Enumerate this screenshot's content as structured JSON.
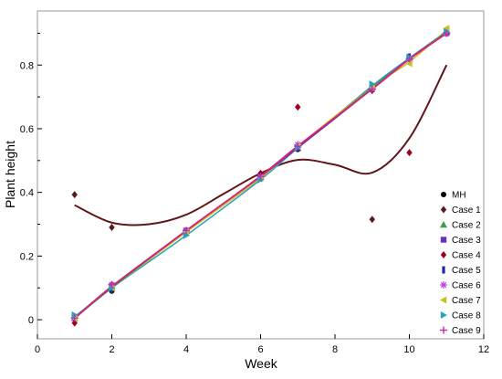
{
  "chart_data": {
    "type": "scatter",
    "xlabel": "Week",
    "ylabel": "Plant height",
    "xlim": [
      0,
      12
    ],
    "ylim": [
      -0.06,
      0.97
    ],
    "x_ticks": [
      "0",
      "2",
      "4",
      "6",
      "8",
      "10",
      "12"
    ],
    "x_tick_values": [
      0,
      2,
      4,
      6,
      8,
      10,
      12
    ],
    "y_ticks": [
      "0",
      "0.2",
      "0.4",
      "0.6",
      "0.8"
    ],
    "y_tick_values": [
      0,
      0.2,
      0.4,
      0.6,
      0.8
    ],
    "grid": false,
    "legend_position": "right",
    "x": [
      1,
      2,
      4,
      6,
      7,
      9,
      10,
      11
    ],
    "series": [
      {
        "name": "MH",
        "marker": "circle",
        "color": "#000000",
        "values": [
          0.005,
          0.09,
          0.28,
          0.45,
          0.535,
          0.73,
          0.82,
          0.9
        ]
      },
      {
        "name": "Case 1",
        "marker": "diamond",
        "color": "#5a1a1a",
        "values": [
          0.393,
          0.29,
          0.28,
          0.455,
          0.545,
          0.315,
          0.82,
          0.9
        ]
      },
      {
        "name": "Case 2",
        "marker": "triangle-up",
        "color": "#3aa04a",
        "values": [
          0.005,
          0.1,
          0.28,
          0.45,
          0.54,
          0.73,
          0.82,
          0.905
        ]
      },
      {
        "name": "Case 3",
        "marker": "square",
        "color": "#6a2fc2",
        "values": [
          0.008,
          0.105,
          0.28,
          0.45,
          0.54,
          0.725,
          0.82,
          0.9
        ]
      },
      {
        "name": "Case 4",
        "marker": "diamond",
        "color": "#a0001a",
        "values": [
          -0.01,
          0.11,
          0.28,
          0.46,
          0.668,
          0.72,
          0.525,
          0.9
        ]
      },
      {
        "name": "Case 5",
        "marker": "bar",
        "color": "#1f2aa0",
        "values": [
          0.005,
          0.095,
          0.275,
          0.445,
          0.54,
          0.73,
          0.825,
          0.905
        ]
      },
      {
        "name": "Case 6",
        "marker": "asterisk",
        "color": "#c040e0",
        "values": [
          0.005,
          0.11,
          0.28,
          0.45,
          0.55,
          0.725,
          0.82,
          0.9
        ]
      },
      {
        "name": "Case 7",
        "marker": "triangle-left",
        "color": "#c8c020",
        "values": [
          0.005,
          0.1,
          0.275,
          0.445,
          0.545,
          0.73,
          0.805,
          0.915
        ]
      },
      {
        "name": "Case 8",
        "marker": "triangle-right",
        "color": "#2aa0c0",
        "values": [
          0.015,
          0.1,
          0.265,
          0.44,
          0.54,
          0.74,
          0.825,
          0.905
        ]
      },
      {
        "name": "Case 9",
        "marker": "plus",
        "color": "#c030b0",
        "values": [
          0.005,
          0.11,
          0.28,
          0.45,
          0.545,
          0.725,
          0.82,
          0.9
        ]
      }
    ],
    "fit_curves": [
      {
        "color": "#7a1020",
        "x": [
          1,
          2,
          3,
          4,
          5,
          6,
          7,
          8,
          9,
          10,
          11
        ],
        "y": [
          0.36,
          0.305,
          0.3,
          0.33,
          0.395,
          0.46,
          0.502,
          0.487,
          0.462,
          0.57,
          0.8
        ]
      },
      {
        "color": "#5a1a1a",
        "x": [
          1,
          2,
          3,
          4,
          5,
          6,
          7,
          8,
          9,
          10,
          11
        ],
        "y": [
          0.36,
          0.305,
          0.3,
          0.33,
          0.395,
          0.46,
          0.502,
          0.487,
          0.462,
          0.57,
          0.8
        ]
      },
      {
        "color": "#2aa0c0",
        "x": [
          1,
          2,
          4,
          6,
          7,
          9,
          10,
          11
        ],
        "y": [
          0.01,
          0.1,
          0.265,
          0.44,
          0.54,
          0.735,
          0.822,
          0.905
        ]
      },
      {
        "color": "#c8c020",
        "x": [
          1,
          2,
          4,
          6,
          7,
          9,
          10,
          11
        ],
        "y": [
          0.005,
          0.1,
          0.275,
          0.445,
          0.545,
          0.73,
          0.81,
          0.91
        ]
      },
      {
        "color": "#3aa04a",
        "x": [
          1,
          2,
          4,
          6,
          7,
          9,
          10,
          11
        ],
        "y": [
          0.005,
          0.1,
          0.28,
          0.45,
          0.54,
          0.73,
          0.82,
          0.905
        ]
      },
      {
        "color": "#c040e0",
        "x": [
          1,
          2,
          4,
          6,
          7,
          9,
          10,
          11
        ],
        "y": [
          0.005,
          0.105,
          0.28,
          0.45,
          0.545,
          0.725,
          0.82,
          0.9
        ]
      },
      {
        "color": "#6a2fc2",
        "x": [
          1,
          2,
          4,
          6,
          7,
          9,
          10,
          11
        ],
        "y": [
          0.005,
          0.103,
          0.28,
          0.45,
          0.54,
          0.725,
          0.82,
          0.9
        ]
      },
      {
        "color": "#c030b0",
        "x": [
          1,
          2,
          4,
          6,
          7,
          9,
          10,
          11
        ],
        "y": [
          0.005,
          0.105,
          0.28,
          0.45,
          0.545,
          0.725,
          0.82,
          0.9
        ]
      },
      {
        "color": "#e0206a",
        "x": [
          1,
          2,
          4,
          6,
          7,
          9,
          10,
          11
        ],
        "y": [
          0.003,
          0.104,
          0.279,
          0.452,
          0.546,
          0.724,
          0.818,
          0.899
        ]
      }
    ]
  }
}
